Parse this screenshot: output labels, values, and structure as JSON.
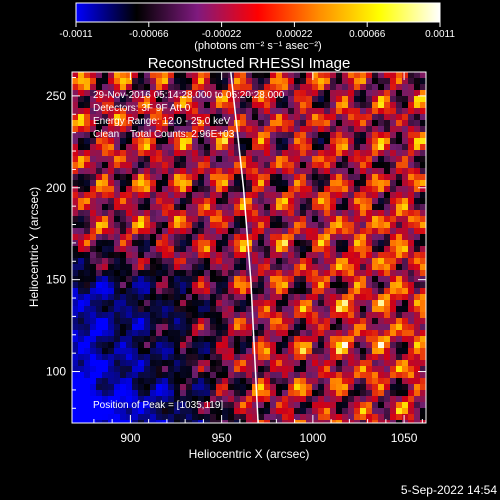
{
  "colorbar": {
    "ticks": [
      "-0.0011",
      "-0.00066",
      "-0.00022",
      "0.00022",
      "0.00066",
      "0.0011"
    ],
    "unit_label": "(photons cm⁻² s⁻¹ asec⁻²)",
    "range": [
      -0.0011,
      0.0011
    ],
    "colors": [
      "#0000ff",
      "#000000",
      "#7f1a7f",
      "#ff0000",
      "#ff8c00",
      "#ffff00",
      "#ffffff"
    ]
  },
  "chart_data": {
    "type": "heatmap",
    "title": "Reconstructed RHESSI Image",
    "xlabel": "Heliocentric X (arcsec)",
    "ylabel": "Heliocentric Y (arcsec)",
    "xlim": [
      868,
      1062
    ],
    "ylim": [
      72,
      263
    ],
    "xticks": [
      900,
      950,
      1000,
      1050
    ],
    "yticks": [
      100,
      150,
      200,
      250
    ],
    "annotations": [
      "29-Nov-2016 05:14:28.000 to 05:20:28.000",
      "Detectors: 3F 9F Att 0",
      "Energy Range: 12.0 - 25.0 keV",
      "Clean    Total Counts: 2.96E+03"
    ],
    "peak_label": "Position of Peak = [1035,119]",
    "peak": [
      1035,
      119
    ],
    "limb_curve": [
      [
        955,
        263
      ],
      [
        962,
        200
      ],
      [
        966,
        150
      ],
      [
        970,
        72
      ]
    ]
  },
  "footer": {
    "date": "5-Sep-2022 14:54"
  }
}
